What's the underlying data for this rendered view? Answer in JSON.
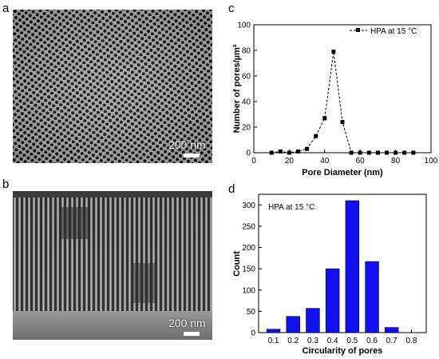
{
  "panels": {
    "a": "a",
    "b": "b",
    "c": "c",
    "d": "d"
  },
  "sem_top": {
    "scale_label": "200 nm"
  },
  "sem_bottom": {
    "scale_label": "200 nm"
  },
  "chart_data": [
    {
      "type": "line",
      "title": "",
      "xlabel": "Pore Diameter (nm)",
      "ylabel": "Number of pores/µm²",
      "xlim": [
        0,
        100
      ],
      "ylim": [
        0,
        100
      ],
      "xticks": [
        "0",
        "20",
        "40",
        "60",
        "80",
        "100"
      ],
      "yticks": [
        "0",
        "20",
        "40",
        "60",
        "80",
        "100"
      ],
      "legend_position": "top-right",
      "series": [
        {
          "name": "HPA at 15 °C",
          "x": [
            10,
            15,
            20,
            25,
            30,
            35,
            40,
            45,
            50,
            55,
            60,
            65,
            70,
            75,
            80,
            85,
            90
          ],
          "y": [
            0,
            1,
            0,
            1,
            3,
            13,
            27,
            79,
            24,
            0,
            0,
            0,
            0,
            0,
            0,
            0,
            0
          ]
        }
      ],
      "marker": "square",
      "line_style": "dashed",
      "color": "#000000"
    },
    {
      "type": "bar",
      "title": "",
      "xlabel": "Circularity of pores",
      "ylabel": "Count",
      "annotation": "HPA at 15 °C",
      "ylim": [
        0,
        325
      ],
      "yticks": [
        "0",
        "50",
        "100",
        "150",
        "200",
        "250",
        "300"
      ],
      "categories": [
        "0.1",
        "0.2",
        "0.3",
        "0.4",
        "0.5",
        "0.6",
        "0.7",
        "0.8"
      ],
      "values": [
        8,
        38,
        57,
        150,
        310,
        167,
        12,
        0
      ],
      "color": "#1010f0"
    }
  ]
}
